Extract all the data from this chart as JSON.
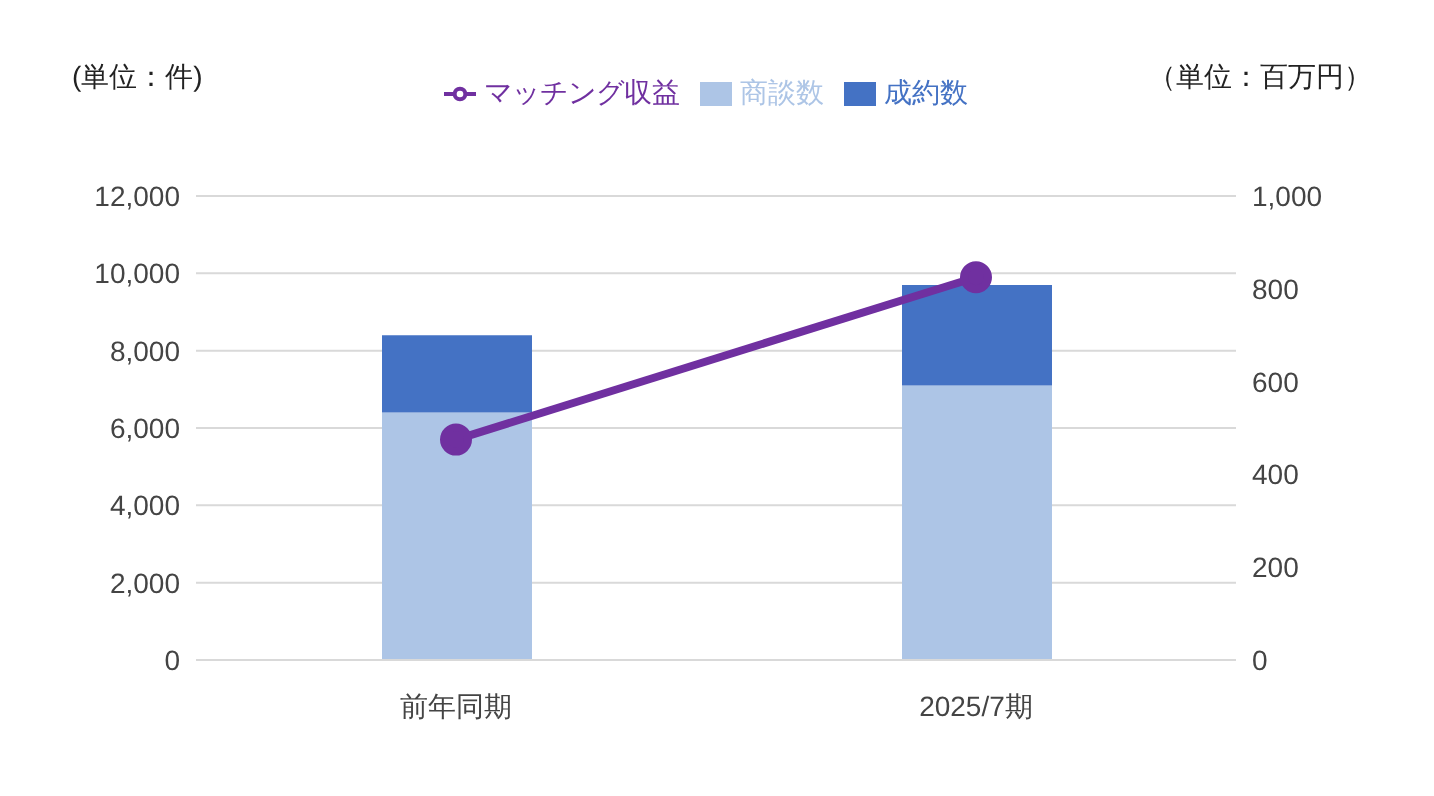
{
  "chart_data": {
    "type": "bar",
    "stacked": true,
    "categories": [
      "前年同期",
      "2025/7期"
    ],
    "series": [
      {
        "name": "商談数",
        "color": "#adc5e6",
        "values": [
          6400,
          7100
        ]
      },
      {
        "name": "成約数",
        "color": "#4472c4",
        "values": [
          2000,
          2600
        ]
      },
      {
        "name": "マッチング収益",
        "type": "line",
        "axis": "y2",
        "color": "#7030a0",
        "values": [
          475,
          825
        ],
        "marker": "circle"
      }
    ],
    "ylabel": "(単位：件)",
    "y2label": "（単位：百万円）",
    "ylim": [
      0,
      12000
    ],
    "yticks": [
      {
        "value": 0,
        "label": "0"
      },
      {
        "value": 2000,
        "label": "2,000"
      },
      {
        "value": 4000,
        "label": "4,000"
      },
      {
        "value": 6000,
        "label": "6,000"
      },
      {
        "value": 8000,
        "label": "8,000"
      },
      {
        "value": 10000,
        "label": "10,000"
      },
      {
        "value": 12000,
        "label": "12,000"
      }
    ],
    "y2lim": [
      0,
      1000
    ],
    "y2ticks": [
      {
        "value": 0,
        "label": "0"
      },
      {
        "value": 200,
        "label": "200"
      },
      {
        "value": 400,
        "label": "400"
      },
      {
        "value": 600,
        "label": "600"
      },
      {
        "value": 800,
        "label": "800"
      },
      {
        "value": 1000,
        "label": "1,000"
      }
    ],
    "grid": "y",
    "legend": "top"
  }
}
